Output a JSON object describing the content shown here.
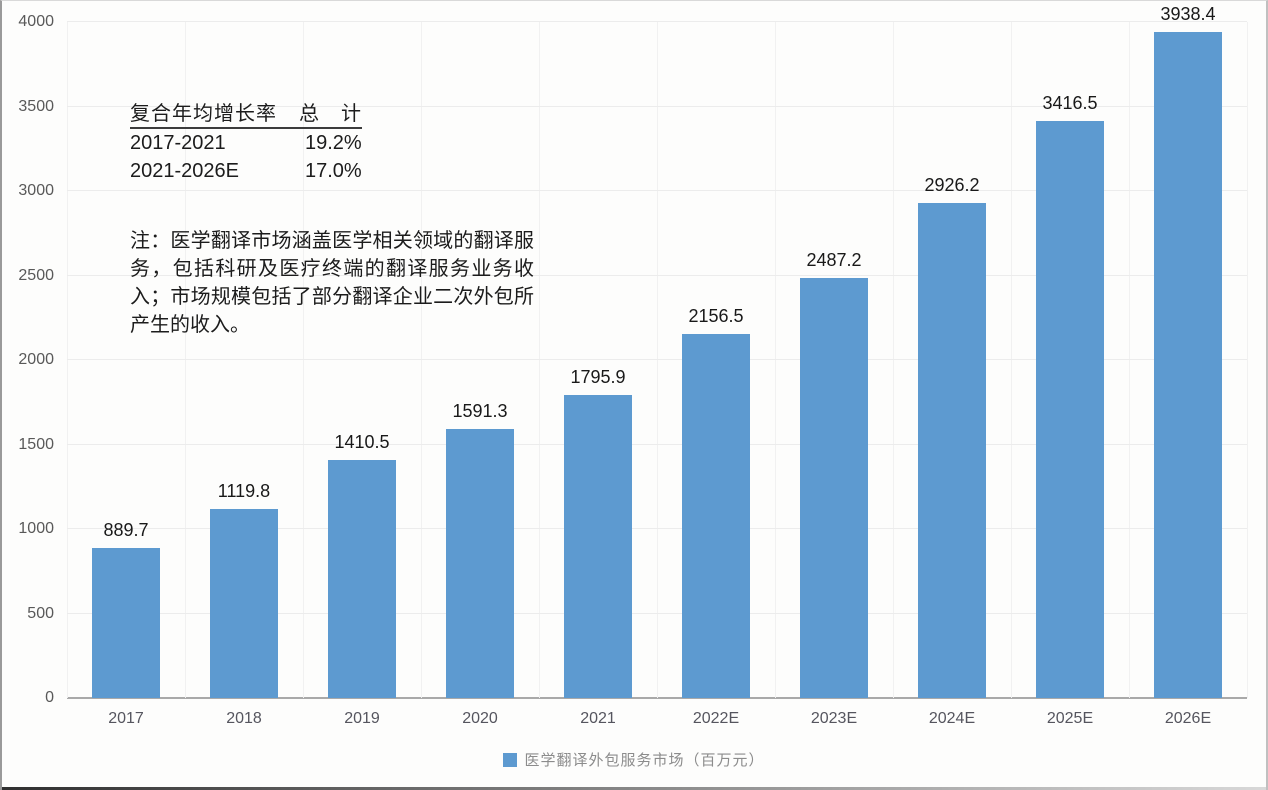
{
  "chart_data": {
    "type": "bar",
    "categories": [
      "2017",
      "2018",
      "2019",
      "2020",
      "2021",
      "2022E",
      "2023E",
      "2024E",
      "2025E",
      "2026E"
    ],
    "series": [
      {
        "name": "医学翻译外包服务市场（百万元）",
        "values": [
          889.7,
          1119.8,
          1410.5,
          1591.3,
          1795.9,
          2156.5,
          2487.2,
          2926.2,
          3416.5,
          3938.4
        ]
      }
    ],
    "title": "",
    "xlabel": "",
    "ylabel": "",
    "ylim": [
      0,
      4000
    ],
    "yticks": [
      0,
      500,
      1000,
      1500,
      2000,
      2500,
      3000,
      3500,
      4000
    ],
    "grid": true,
    "legend_position": "bottom",
    "bar_color": "#5d9ad0",
    "data_labels_decimals": 1
  },
  "annotation": {
    "cagr_table": {
      "header": {
        "metric": "复合年均增长率",
        "total": "总　计"
      },
      "rows": [
        {
          "period": "2017-2021",
          "value": "19.2%"
        },
        {
          "period": "2021-2026E",
          "value": "17.0%"
        }
      ]
    },
    "note": "注：医学翻译市场涵盖医学相关领域的翻译服务，包括科研及医疗终端的翻译服务业务收入；市场规模包括了部分翻译企业二次外包所产生的收入。"
  },
  "legend": {
    "label": "医学翻译外包服务市场（百万元）",
    "marker_color": "#5d9ad0"
  }
}
